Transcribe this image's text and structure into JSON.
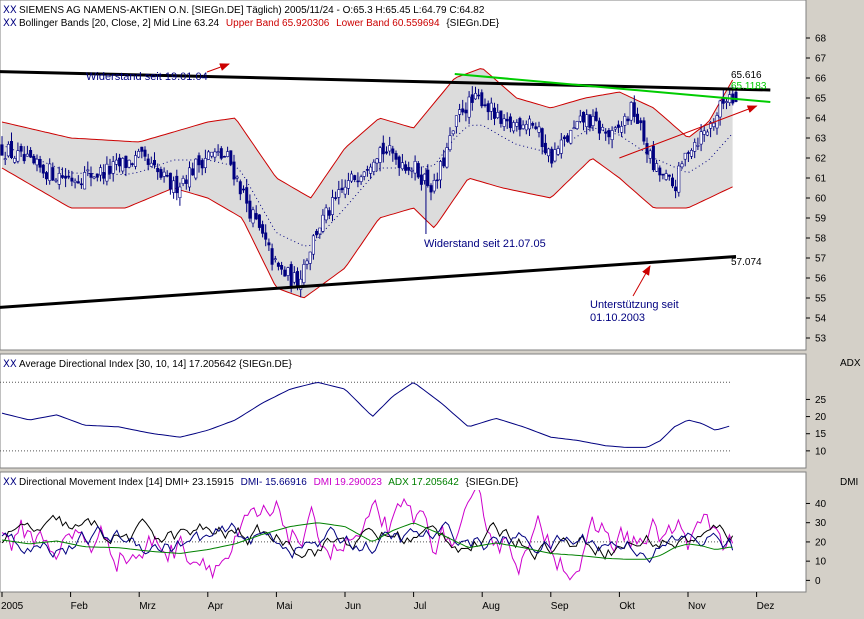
{
  "colors": {
    "panel_bg": "#ffffff",
    "frame_bg": "#d4d0c8",
    "candle_up": "#ffffff",
    "candle_down": "#000080",
    "band_line": "#cc0000",
    "band_fill": "#dcdcdc",
    "midline": "#000080",
    "trend_black": "#000000",
    "trend_green": "#00cc00",
    "trend_red": "#cc0000",
    "annotation_blue": "#000080",
    "adx_line": "#000080",
    "dmi_plus": "#000000",
    "dmi_minus": "#000080",
    "dmi_dx": "#cc00cc",
    "dmi_adx": "#008000"
  },
  "panel1": {
    "title": "SIEMENS AG NAMENS-AKTIEN O.N. [SIEGn.DE]  Täglich) 2005/11/24 - O:65.3 H:65.45 L:64.79 C:64.82",
    "bb_prefix": "Bollinger Bands [20, Close, 2] Mid Line 63.24",
    "bb_upper": "Upper Band 65.920306",
    "bb_lower": "Lower Band 60.559694",
    "bb_sym": "{SIEGn.DE}",
    "annotations": {
      "resistance_2004": "Widerstand seit 19.01.04",
      "resistance_2005": "Widerstand seit 21.07.05",
      "support_line1": "Unterstützung seit",
      "support_line2": "01.10.2003",
      "value_top": "65.616",
      "value_bottom": "57.074",
      "value_green": "65.1183"
    }
  },
  "panel2": {
    "title": "Average Directional Index [30, 10, 14] 17.205642 {SIEGn.DE}",
    "side_label": "ADX"
  },
  "panel3": {
    "title_prefix": "Directional Movement Index [14] DMI+ 23.15915",
    "title_minus": "DMI- 15.66916",
    "title_dmi": "DMI 19.290023",
    "title_adx": "ADX 17.205642",
    "title_sym": "{SIEGn.DE}",
    "side_label": "DMI"
  },
  "x_axis": {
    "labels": [
      "2005",
      "Feb",
      "Mrz",
      "Apr",
      "Mai",
      "Jun",
      "Jul",
      "Aug",
      "Sep",
      "Okt",
      "Nov",
      "Dez"
    ]
  },
  "chart_data": [
    {
      "type": "candlestick",
      "symbol": "SIEGn.DE",
      "y_ticks": [
        53,
        54,
        55,
        56,
        57,
        58,
        59,
        60,
        61,
        62,
        63,
        64,
        65,
        66,
        67,
        68
      ],
      "ylim": [
        52.5,
        69
      ],
      "months": [
        "2005",
        "Feb",
        "Mrz",
        "Apr",
        "Mai",
        "Jun",
        "Jul",
        "Aug",
        "Sep",
        "Okt",
        "Nov",
        "Dez"
      ],
      "last_bar": {
        "date": "2005/11/24",
        "open": 65.3,
        "high": 65.45,
        "low": 64.79,
        "close": 64.82
      },
      "close_path_approx": [
        [
          0,
          62.5
        ],
        [
          0.5,
          61.5
        ],
        [
          1,
          61.0
        ],
        [
          1.5,
          61.3
        ],
        [
          2,
          62.0
        ],
        [
          2.5,
          60.5
        ],
        [
          3,
          62.2
        ],
        [
          3.3,
          62.0
        ],
        [
          3.6,
          59.5
        ],
        [
          4,
          56.5
        ],
        [
          4.3,
          55.8
        ],
        [
          4.6,
          58.5
        ],
        [
          5,
          60.5
        ],
        [
          5.5,
          62.5
        ],
        [
          6,
          61.5
        ],
        [
          6.3,
          60.5
        ],
        [
          6.7,
          64.5
        ],
        [
          7,
          65.0
        ],
        [
          7.3,
          63.5
        ],
        [
          7.7,
          64.0
        ],
        [
          8,
          62.0
        ],
        [
          8.5,
          64.0
        ],
        [
          8.9,
          63.0
        ],
        [
          9.2,
          64.5
        ],
        [
          9.5,
          61.5
        ],
        [
          9.8,
          60.5
        ],
        [
          10,
          62.5
        ],
        [
          10.3,
          63.5
        ],
        [
          10.6,
          65.3
        ],
        [
          10.7,
          64.82
        ]
      ],
      "bollinger": {
        "period": 20,
        "stddev": 2,
        "mid": 63.24,
        "upper": 65.920306,
        "lower": 60.559694,
        "upper_path_approx": [
          [
            0,
            63.8
          ],
          [
            1,
            63.0
          ],
          [
            2,
            62.8
          ],
          [
            3,
            63.8
          ],
          [
            3.4,
            64.0
          ],
          [
            4,
            61.0
          ],
          [
            4.5,
            60.0
          ],
          [
            5,
            62.5
          ],
          [
            5.5,
            64.0
          ],
          [
            6,
            63.5
          ],
          [
            6.6,
            66.0
          ],
          [
            7,
            66.5
          ],
          [
            7.5,
            65.0
          ],
          [
            8,
            64.5
          ],
          [
            8.5,
            65.0
          ],
          [
            9,
            65.3
          ],
          [
            9.5,
            64.5
          ],
          [
            10,
            63.0
          ],
          [
            10.3,
            63.8
          ],
          [
            10.65,
            65.9
          ]
        ],
        "lower_path_approx": [
          [
            0,
            61.5
          ],
          [
            1,
            59.5
          ],
          [
            1.8,
            59.5
          ],
          [
            2.5,
            60.5
          ],
          [
            3,
            60.0
          ],
          [
            3.5,
            59.0
          ],
          [
            4,
            55.5
          ],
          [
            4.4,
            55.0
          ],
          [
            5,
            56.5
          ],
          [
            5.5,
            59.0
          ],
          [
            6,
            59.5
          ],
          [
            6.3,
            58.5
          ],
          [
            6.8,
            61.0
          ],
          [
            7.3,
            60.5
          ],
          [
            8,
            60.0
          ],
          [
            8.6,
            62.0
          ],
          [
            9,
            61.0
          ],
          [
            9.5,
            59.5
          ],
          [
            10,
            59.5
          ],
          [
            10.65,
            60.56
          ]
        ]
      },
      "trend_lines": [
        {
          "name": "Widerstand seit 19.01.04",
          "points": [
            [
              -1.0,
              66.4
            ],
            [
              11.2,
              65.4
            ]
          ]
        },
        {
          "name": "Unterstützung seit 01.10.2003",
          "points": [
            [
              -1.0,
              54.3
            ],
            [
              10.7,
              57.074
            ]
          ]
        },
        {
          "name": "Widerstand seit 21.07.05",
          "points": [
            [
              9.0,
              62.0
            ],
            [
              11.0,
              64.6
            ]
          ]
        },
        {
          "name": "green",
          "points": [
            [
              6.6,
              66.2
            ],
            [
              11.2,
              64.8
            ]
          ]
        }
      ],
      "labels": {
        "upper_line_end": 65.616,
        "lower_line_end": 57.074
      }
    },
    {
      "type": "line",
      "name": "Average Directional Index [30, 10, 14]",
      "y_ticks": [
        10,
        15,
        20,
        25
      ],
      "ylim": [
        5,
        33
      ],
      "last": 17.205642,
      "thresholds": [
        10,
        30
      ],
      "values_approx": [
        [
          0,
          21
        ],
        [
          0.4,
          19
        ],
        [
          0.8,
          20.5
        ],
        [
          1.2,
          17.5
        ],
        [
          1.7,
          17
        ],
        [
          2.2,
          15
        ],
        [
          2.6,
          14
        ],
        [
          3.0,
          16
        ],
        [
          3.4,
          19
        ],
        [
          3.8,
          24
        ],
        [
          4.2,
          28
        ],
        [
          4.6,
          30
        ],
        [
          5.0,
          28
        ],
        [
          5.4,
          20
        ],
        [
          5.7,
          26
        ],
        [
          6.0,
          30
        ],
        [
          6.4,
          24
        ],
        [
          6.8,
          17
        ],
        [
          7.2,
          19.5
        ],
        [
          7.6,
          17
        ],
        [
          8.0,
          14
        ],
        [
          8.4,
          13
        ],
        [
          8.8,
          11.5
        ],
        [
          9.1,
          11
        ],
        [
          9.4,
          11
        ],
        [
          9.6,
          13
        ],
        [
          9.8,
          17
        ],
        [
          10.0,
          19
        ],
        [
          10.2,
          18
        ],
        [
          10.4,
          16
        ],
        [
          10.6,
          17.2
        ]
      ]
    },
    {
      "type": "line",
      "name": "Directional Movement Index [14]",
      "y_ticks": [
        0,
        10,
        20,
        30,
        40
      ],
      "ylim": [
        -5,
        47
      ],
      "series": [
        {
          "name": "DMI+",
          "last": 23.15915
        },
        {
          "name": "DMI-",
          "last": 15.66916
        },
        {
          "name": "DMI",
          "last": 19.290023
        },
        {
          "name": "ADX",
          "last": 17.205642
        }
      ]
    }
  ]
}
